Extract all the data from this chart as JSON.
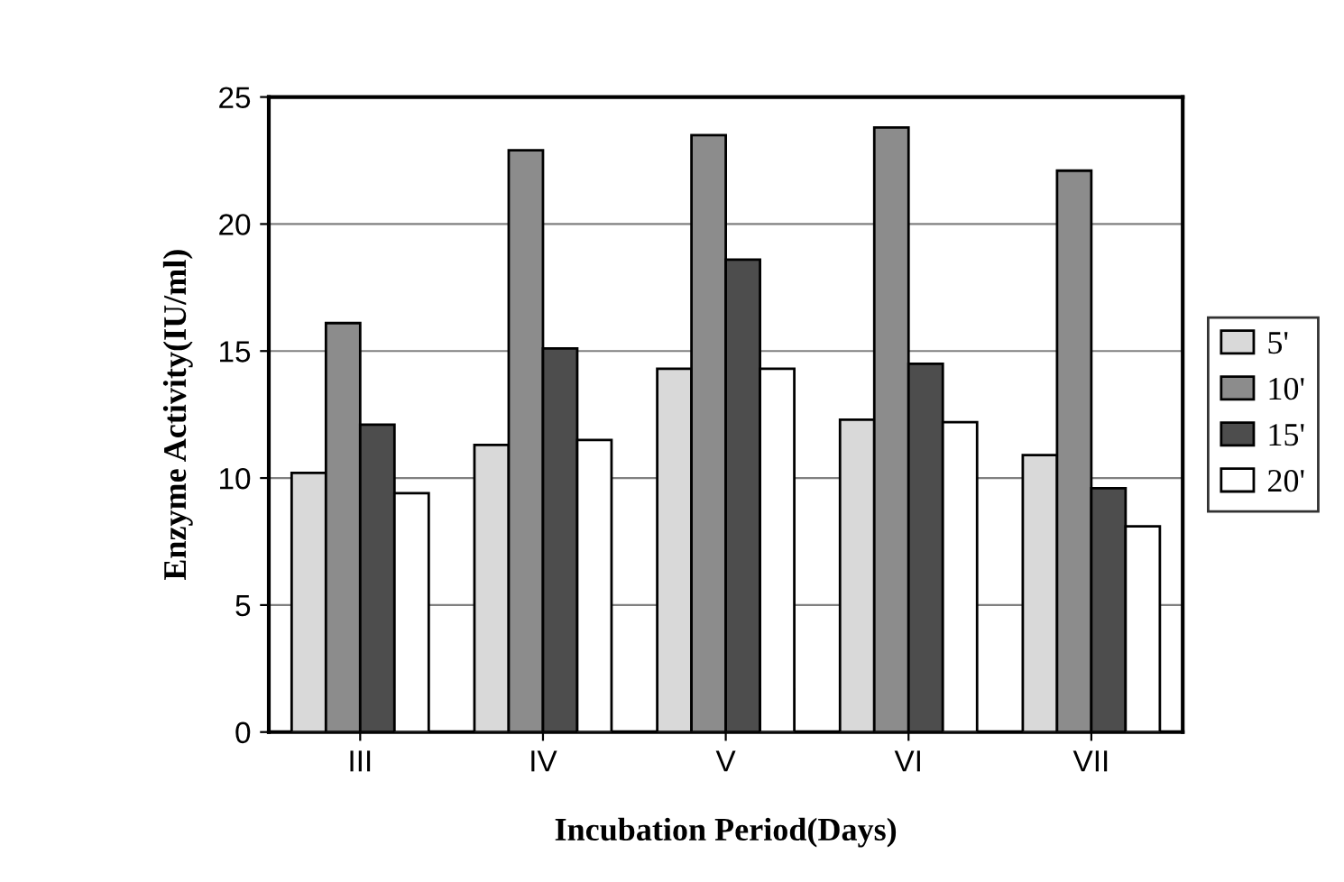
{
  "chart_data": {
    "type": "bar",
    "xlabel": "Incubation Period(Days)",
    "ylabel": "Enzyme Activity(IU/ml)",
    "categories": [
      "III",
      "IV",
      "V",
      "VI",
      "VII"
    ],
    "series": [
      {
        "name": "5'",
        "color": "#d9d9d9",
        "values": [
          10.2,
          11.3,
          14.3,
          12.3,
          10.9
        ]
      },
      {
        "name": "10'",
        "color": "#8c8c8c",
        "values": [
          16.1,
          22.9,
          23.5,
          23.8,
          22.1
        ]
      },
      {
        "name": "15'",
        "color": "#4d4d4d",
        "values": [
          12.1,
          15.1,
          18.6,
          14.5,
          9.6
        ]
      },
      {
        "name": "20'",
        "color": "#ffffff",
        "values": [
          9.4,
          11.5,
          14.3,
          12.2,
          8.1
        ]
      }
    ],
    "ylim": [
      0,
      25
    ],
    "yticks": [
      0,
      5,
      10,
      15,
      20,
      25
    ],
    "grid": "y",
    "legend": "right"
  }
}
